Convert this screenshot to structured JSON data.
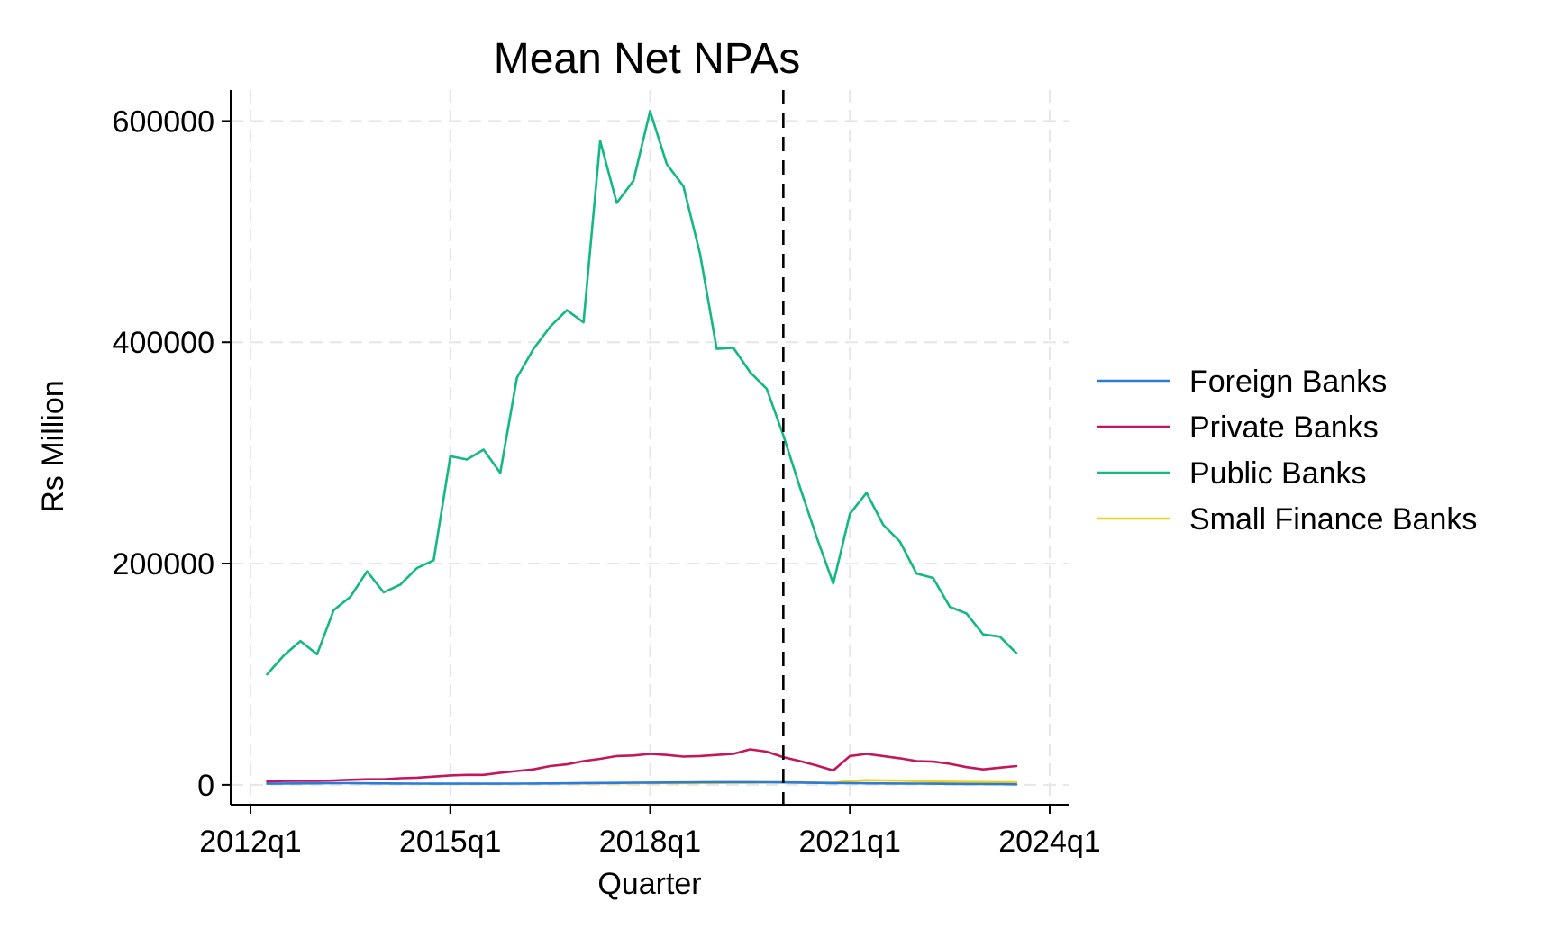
{
  "chart_data": {
    "type": "line",
    "title": "Mean Net NPAs",
    "xlabel": "Quarter",
    "ylabel": "Rs Million",
    "x_ticks": [
      "2012q1",
      "2015q1",
      "2018q1",
      "2021q1",
      "2024q1"
    ],
    "y_ticks": [
      0,
      200000,
      400000,
      600000
    ],
    "ylim": [
      -18000,
      628000
    ],
    "xlim": [
      "2012q1",
      "2024q1"
    ],
    "grid": true,
    "legend_position": "right",
    "reference_line": {
      "x": "2020q1",
      "style": "dashed",
      "color": "#000000"
    },
    "x": [
      "2012q2",
      "2012q3",
      "2012q4",
      "2013q1",
      "2013q2",
      "2013q3",
      "2013q4",
      "2014q1",
      "2014q2",
      "2014q3",
      "2014q4",
      "2015q1",
      "2015q2",
      "2015q3",
      "2015q4",
      "2016q1",
      "2016q2",
      "2016q3",
      "2016q4",
      "2017q1",
      "2017q2",
      "2017q3",
      "2017q4",
      "2018q1",
      "2018q2",
      "2018q3",
      "2018q4",
      "2019q1",
      "2019q2",
      "2019q3",
      "2019q4",
      "2020q1",
      "2020q2",
      "2020q3",
      "2020q4",
      "2021q1",
      "2021q2",
      "2021q3",
      "2021q4",
      "2022q1",
      "2022q2",
      "2022q3",
      "2022q4",
      "2023q1",
      "2023q2",
      "2023q3"
    ],
    "series": [
      {
        "name": "Foreign Banks",
        "color": "#2b7bd8",
        "values": [
          1000,
          1200,
          1300,
          1400,
          1500,
          1500,
          1400,
          1300,
          1200,
          1100,
          1000,
          1000,
          1000,
          1000,
          1000,
          1100,
          1200,
          1300,
          1400,
          1600,
          1700,
          1800,
          1900,
          2000,
          2100,
          2200,
          2300,
          2400,
          2400,
          2400,
          2300,
          2200,
          2000,
          1800,
          1600,
          1500,
          1400,
          1300,
          1200,
          1100,
          1000,
          900,
          800,
          700,
          600,
          500
        ]
      },
      {
        "name": "Private Banks",
        "color": "#c2185b",
        "values": [
          3000,
          3500,
          3600,
          3600,
          4000,
          4500,
          5000,
          5000,
          6000,
          6500,
          7500,
          8500,
          9000,
          9000,
          11000,
          12500,
          14000,
          17000,
          18500,
          21500,
          23500,
          26000,
          26500,
          28000,
          27000,
          25500,
          26000,
          27000,
          28000,
          32000,
          30000,
          25000,
          21500,
          17500,
          13000,
          26000,
          28000,
          26000,
          24000,
          21500,
          21000,
          19000,
          16000,
          14000,
          15500,
          17000
        ]
      },
      {
        "name": "Public Banks",
        "color": "#14b884",
        "values": [
          100000,
          117000,
          130000,
          118000,
          158000,
          170000,
          193000,
          174000,
          181000,
          196000,
          203000,
          297000,
          294000,
          303000,
          282000,
          368000,
          394000,
          414000,
          429000,
          418000,
          582000,
          526000,
          546000,
          609000,
          561000,
          541000,
          480000,
          394000,
          395000,
          373000,
          358000,
          316000,
          269000,
          224000,
          182000,
          245000,
          264000,
          235000,
          220000,
          191000,
          187000,
          161000,
          155000,
          136000,
          134000,
          119000
        ]
      },
      {
        "name": "Small Finance Banks",
        "color": "#f2d024",
        "values": [
          null,
          null,
          null,
          null,
          null,
          null,
          null,
          null,
          null,
          null,
          null,
          null,
          null,
          null,
          null,
          null,
          null,
          null,
          1200,
          1300,
          1400,
          1400,
          1500,
          1500,
          1600,
          1600,
          1700,
          1800,
          1900,
          2000,
          2200,
          2400,
          2300,
          2100,
          1800,
          3500,
          4200,
          4000,
          3800,
          3400,
          3000,
          2800,
          2600,
          2500,
          2400,
          2300
        ]
      }
    ]
  }
}
